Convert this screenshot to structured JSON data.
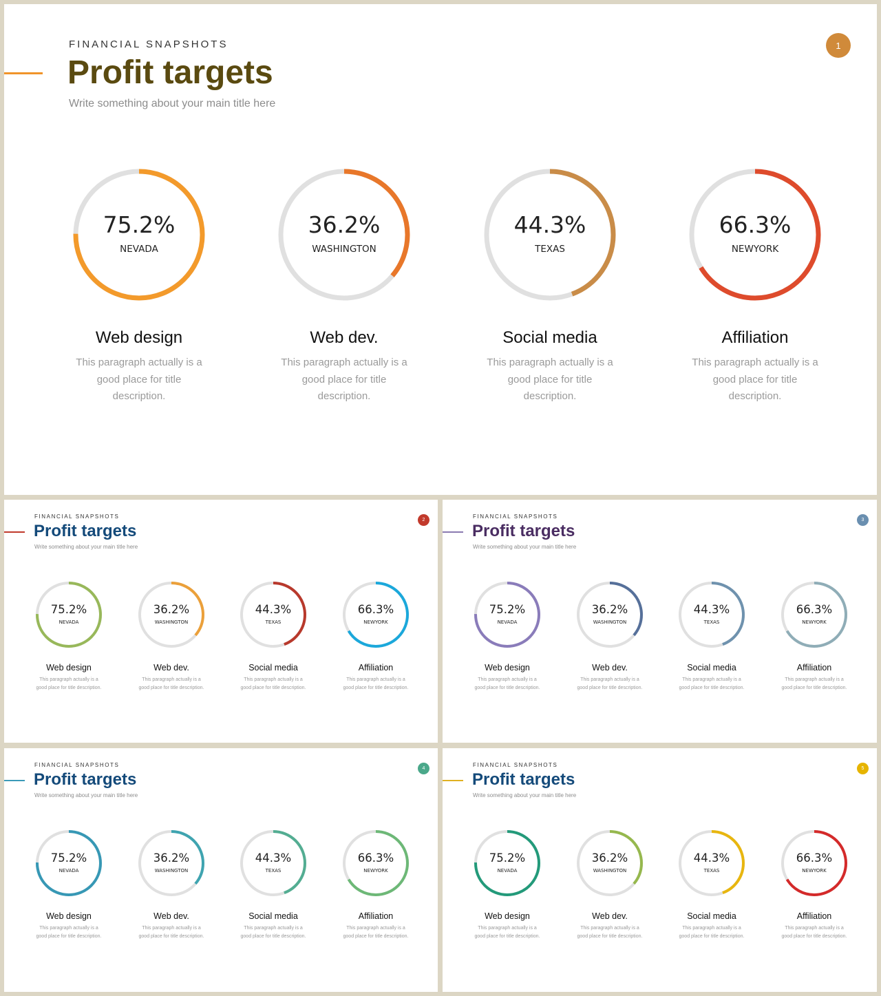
{
  "slides": [
    {
      "eyebrow": "FINANCIAL SNAPSHOTS",
      "title": "Profit targets",
      "subtitle": "Write something about your main title here",
      "page_number": "1",
      "title_color": "#5a4a10",
      "accent_color": "#f0942a",
      "badge_color": "#d08a3a",
      "ring_colors": [
        "#f39a2b",
        "#e8772a",
        "#c98c48",
        "#de4b2c"
      ]
    },
    {
      "eyebrow": "FINANCIAL SNAPSHOTS",
      "title": "Profit targets",
      "subtitle": "Write something about your main title here",
      "page_number": "2",
      "title_color": "#144a7a",
      "accent_color": "#c0392b",
      "badge_color": "#c23a2c",
      "ring_colors": [
        "#98b85a",
        "#eba03a",
        "#b8392c",
        "#1ba8db"
      ]
    },
    {
      "eyebrow": "FINANCIAL SNAPSHOTS",
      "title": "Profit targets",
      "subtitle": "Write something about your main title here",
      "page_number": "3",
      "title_color": "#4a2d62",
      "accent_color": "#8a7ab0",
      "badge_color": "#6a8fb0",
      "ring_colors": [
        "#8a7cba",
        "#56709a",
        "#6f92ae",
        "#8fadb7"
      ]
    },
    {
      "eyebrow": "FINANCIAL SNAPSHOTS",
      "title": "Profit targets",
      "subtitle": "Write something about your main title here",
      "page_number": "4",
      "title_color": "#144a7a",
      "accent_color": "#3a9ab8",
      "badge_color": "#4aa88a",
      "ring_colors": [
        "#3798b5",
        "#3fa4b0",
        "#53ad92",
        "#6db877"
      ]
    },
    {
      "eyebrow": "FINANCIAL SNAPSHOTS",
      "title": "Profit targets",
      "subtitle": "Write something about your main title here",
      "page_number": "5",
      "title_color": "#144a7a",
      "accent_color": "#e0b020",
      "badge_color": "#e6b400",
      "ring_colors": [
        "#239a7a",
        "#96b84e",
        "#e8b60f",
        "#d42a2a"
      ]
    }
  ],
  "cards": [
    {
      "value": "75.2%",
      "percent": 75.2,
      "location": "NEVADA",
      "title": "Web design",
      "description": "This paragraph actually is a good place for title description."
    },
    {
      "value": "36.2%",
      "percent": 36.2,
      "location": "WASHINGTON",
      "title": "Web dev.",
      "description": "This paragraph actually is a good place for title description."
    },
    {
      "value": "44.3%",
      "percent": 44.3,
      "location": "TEXAS",
      "title": "Social media",
      "description": "This paragraph actually is a good place for title description."
    },
    {
      "value": "66.3%",
      "percent": 66.3,
      "location": "NEWYORK",
      "title": "Affiliation",
      "description": "This paragraph actually is a good place for title description."
    }
  ],
  "track_color": "#e0e0e0"
}
